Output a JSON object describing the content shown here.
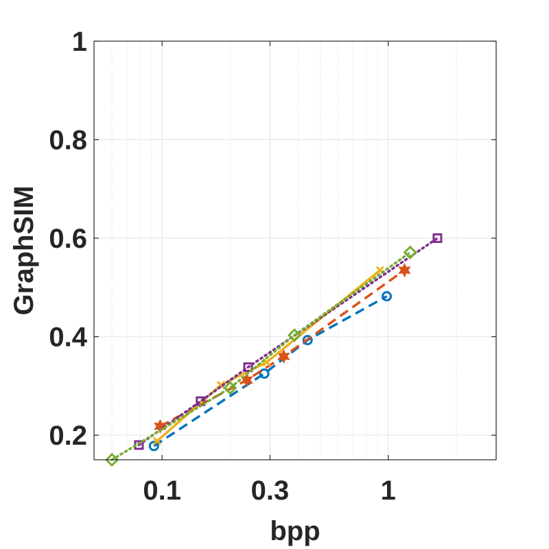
{
  "chart_data": {
    "type": "line",
    "title": "",
    "xlabel": "bpp",
    "ylabel": "GraphSIM",
    "xscale": "log",
    "xlim": [
      0.05,
      3
    ],
    "ylim": [
      0.15,
      1
    ],
    "x_ticks": [
      0.1,
      0.3,
      1
    ],
    "x_tick_labels": [
      "0.1",
      "0.3",
      "1"
    ],
    "y_ticks": [
      0.2,
      0.4,
      0.6,
      0.8,
      1
    ],
    "y_tick_labels": [
      "0.2",
      "0.4",
      "0.6",
      "0.8",
      "1"
    ],
    "grid": true,
    "minor_grid_x": true,
    "legend": "none",
    "series": [
      {
        "color": "#0072BD",
        "line_style": "dashed",
        "marker": "circle",
        "x": [
          0.092,
          0.283,
          0.44,
          0.985
        ],
        "y": [
          0.178,
          0.325,
          0.393,
          0.482
        ]
      },
      {
        "color": "#D95319",
        "line_style": "dashed",
        "marker": "hexagram",
        "x": [
          0.098,
          0.237,
          0.345,
          1.18
        ],
        "y": [
          0.218,
          0.312,
          0.36,
          0.535
        ]
      },
      {
        "color": "#EDB120",
        "line_style": "solid",
        "marker": "x",
        "x": [
          0.095,
          0.182,
          0.29,
          0.92
        ],
        "y": [
          0.188,
          0.302,
          0.348,
          0.535
        ]
      },
      {
        "color": "#7E2F8E",
        "line_style": "dotted",
        "marker": "square",
        "x": [
          0.079,
          0.148,
          0.24,
          1.65
        ],
        "y": [
          0.18,
          0.269,
          0.338,
          0.6
        ]
      },
      {
        "color": "#77AC30",
        "line_style": "dotted",
        "marker": "diamond",
        "x": [
          0.06,
          0.2,
          0.385,
          1.25
        ],
        "y": [
          0.15,
          0.296,
          0.403,
          0.571
        ]
      }
    ]
  }
}
